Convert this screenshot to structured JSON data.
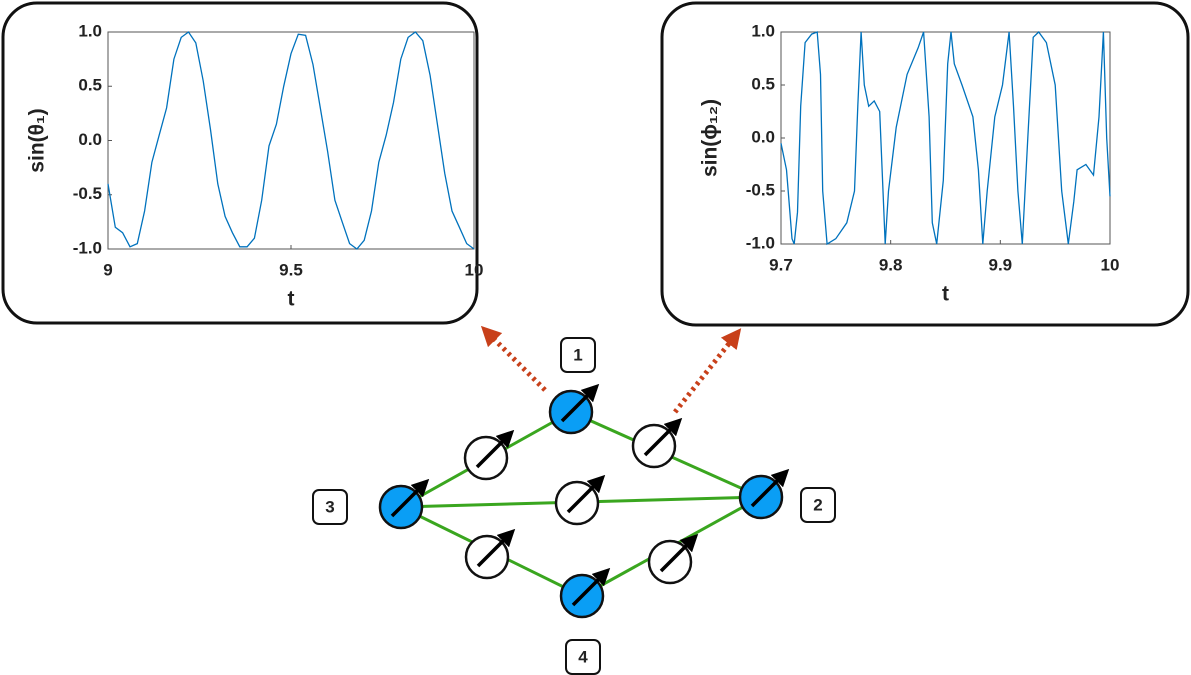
{
  "chart_data": [
    {
      "type": "line",
      "xlabel": "t",
      "ylabel": "sin(θ₁)",
      "color": "#0072bd",
      "x": [
        9.0,
        9.02,
        9.04,
        9.06,
        9.08,
        9.1,
        9.12,
        9.14,
        9.16,
        9.18,
        9.2,
        9.22,
        9.24,
        9.26,
        9.28,
        9.3,
        9.32,
        9.34,
        9.36,
        9.38,
        9.4,
        9.42,
        9.44,
        9.46,
        9.48,
        9.5,
        9.52,
        9.54,
        9.56,
        9.58,
        9.6,
        9.62,
        9.64,
        9.66,
        9.68,
        9.7,
        9.72,
        9.74,
        9.76,
        9.78,
        9.8,
        9.82,
        9.84,
        9.86,
        9.88,
        9.9,
        9.92,
        9.94,
        9.96,
        9.98,
        10.0
      ],
      "values": [
        -0.4,
        -0.8,
        -0.85,
        -0.98,
        -0.95,
        -0.65,
        -0.2,
        0.05,
        0.3,
        0.75,
        0.95,
        1.0,
        0.9,
        0.55,
        0.1,
        -0.4,
        -0.7,
        -0.85,
        -0.98,
        -0.98,
        -0.9,
        -0.55,
        -0.05,
        0.15,
        0.5,
        0.8,
        0.98,
        0.97,
        0.7,
        0.3,
        -0.1,
        -0.55,
        -0.75,
        -0.95,
        -1.0,
        -0.92,
        -0.65,
        -0.2,
        0.05,
        0.35,
        0.75,
        0.95,
        1.0,
        0.92,
        0.6,
        0.15,
        -0.3,
        -0.65,
        -0.8,
        -0.95,
        -1.0
      ],
      "xlim": [
        9,
        10
      ],
      "xticks": [
        9,
        9.5,
        10
      ],
      "ylim": [
        -1,
        1
      ],
      "yticks": [
        {
          "value": -1,
          "label": "-1.0"
        },
        -0.5,
        {
          "value": 0,
          "label": "0.0"
        },
        0.5,
        {
          "value": 1,
          "label": "1.0"
        }
      ]
    },
    {
      "type": "line",
      "xlabel": "t",
      "ylabel": "sin(ϕ₁₂)",
      "color": "#0072bd",
      "x": [
        9.7,
        9.705,
        9.71,
        9.712,
        9.715,
        9.718,
        9.722,
        9.728,
        9.733,
        9.736,
        9.738,
        9.742,
        9.75,
        9.76,
        9.767,
        9.77,
        9.773,
        9.776,
        9.78,
        9.785,
        9.79,
        9.793,
        9.795,
        9.798,
        9.805,
        9.815,
        9.825,
        9.83,
        9.835,
        9.838,
        9.842,
        9.848,
        9.852,
        9.855,
        9.858,
        9.865,
        9.875,
        9.88,
        9.884,
        9.888,
        9.895,
        9.902,
        9.908,
        9.912,
        9.916,
        9.92,
        9.925,
        9.93,
        9.935,
        9.942,
        9.95,
        9.956,
        9.962,
        9.967,
        9.97,
        9.978,
        9.985,
        9.99,
        9.994,
        9.997,
        10.0
      ],
      "values": [
        -0.05,
        -0.3,
        -0.95,
        -1.0,
        -0.7,
        0.3,
        0.9,
        0.98,
        1.0,
        0.6,
        -0.5,
        -1.0,
        -0.95,
        -0.8,
        -0.5,
        0.3,
        1.0,
        0.5,
        0.3,
        0.35,
        0.25,
        -0.5,
        -1.0,
        -0.5,
        0.1,
        0.6,
        0.85,
        1.0,
        0.2,
        -0.8,
        -1.0,
        -0.4,
        0.7,
        1.0,
        0.7,
        0.5,
        0.2,
        -0.3,
        -1.0,
        -0.5,
        0.2,
        0.5,
        1.0,
        0.3,
        -0.5,
        -1.0,
        0.0,
        0.95,
        1.0,
        0.9,
        0.5,
        -0.5,
        -1.0,
        -0.6,
        -0.3,
        -0.25,
        -0.35,
        0.2,
        1.0,
        0.0,
        -0.55
      ],
      "xlim": [
        9.7,
        10
      ],
      "xticks": [
        9.7,
        9.8,
        9.9,
        10
      ],
      "ylim": [
        -1,
        1
      ],
      "yticks": [
        {
          "value": -1,
          "label": "-1.0"
        },
        -0.5,
        {
          "value": 0,
          "label": "0.0"
        },
        0.5,
        {
          "value": 1,
          "label": "1.0"
        }
      ]
    }
  ],
  "nodes": [
    {
      "label": "1"
    },
    {
      "label": "2"
    },
    {
      "label": "3"
    },
    {
      "label": "4"
    }
  ]
}
